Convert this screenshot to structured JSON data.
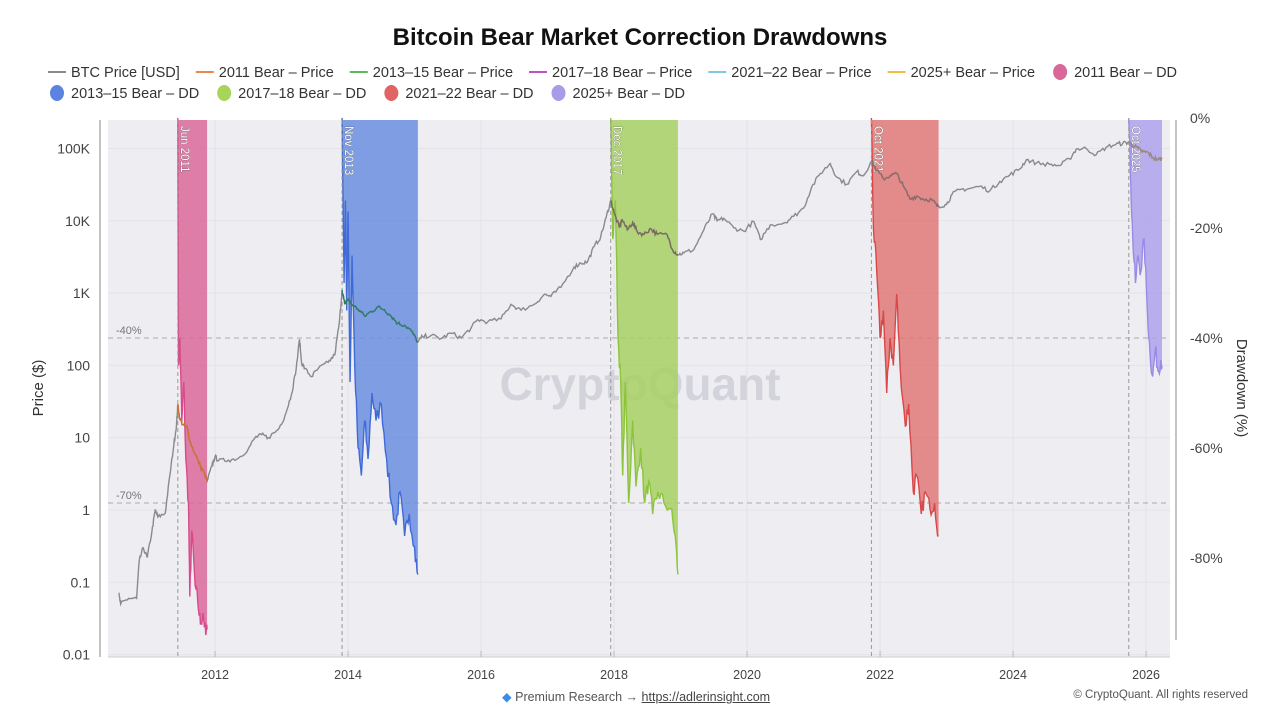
{
  "chart_data": {
    "type": "line",
    "title": "Bitcoin Bear Market Correction Drawdowns",
    "ylabel": "Price ($)",
    "y2label": "Drawdown (%)",
    "xlim": [
      2010.4,
      2026.35
    ],
    "ylim": [
      0.01,
      250000
    ],
    "yscale": "log",
    "y2lim": [
      -98,
      0
    ],
    "x_ticks": [
      "2012",
      "2014",
      "2016",
      "2018",
      "2020",
      "2022",
      "2024",
      "2026"
    ],
    "y_ticks": [
      {
        "value": 100000,
        "label": "100K"
      },
      {
        "value": 10000,
        "label": "10K"
      },
      {
        "value": 1000,
        "label": "1K"
      },
      {
        "value": 100,
        "label": "100"
      },
      {
        "value": 10,
        "label": "10"
      },
      {
        "value": 1,
        "label": "1"
      },
      {
        "value": 0.1,
        "label": "0.1"
      },
      {
        "value": 0.01,
        "label": "0.01"
      }
    ],
    "y2_ticks": [
      {
        "value": 0,
        "label": "0%"
      },
      {
        "value": -20,
        "label": "-20%"
      },
      {
        "value": -40,
        "label": "-40%"
      },
      {
        "value": -60,
        "label": "-60%"
      },
      {
        "value": -80,
        "label": "-80%"
      }
    ],
    "reference_lines": [
      {
        "value": -40,
        "label": "-40%"
      },
      {
        "value": -70,
        "label": "-70%"
      }
    ],
    "grid": true,
    "legend_position": "top",
    "legend": [
      {
        "name": "BTC Price [USD]",
        "kind": "line",
        "color": "#8a8a8e"
      },
      {
        "name": "2011 Bear – Price",
        "kind": "line",
        "color": "#e8874a"
      },
      {
        "name": "2013–15 Bear – Price",
        "kind": "line",
        "color": "#5cb85c"
      },
      {
        "name": "2017–18 Bear – Price",
        "kind": "line",
        "color": "#c050c8"
      },
      {
        "name": "2021–22 Bear – Price",
        "kind": "line",
        "color": "#7cc8e8"
      },
      {
        "name": "2025+ Bear – Price",
        "kind": "line",
        "color": "#f0c040"
      },
      {
        "name": "2011 Bear – DD",
        "kind": "dot",
        "color": "#d9679a"
      },
      {
        "name": "2013–15 Bear – DD",
        "kind": "dot",
        "color": "#5b84e0"
      },
      {
        "name": "2017–18 Bear – DD",
        "kind": "dot",
        "color": "#a8d45a"
      },
      {
        "name": "2021–22 Bear – DD",
        "kind": "dot",
        "color": "#e06464"
      },
      {
        "name": "2025+ Bear – DD",
        "kind": "dot",
        "color": "#a89ce8"
      }
    ],
    "bears": [
      {
        "label": "Jun 2011",
        "start": 2011.44,
        "end": 2011.88,
        "fill": "#d9689b",
        "line": "#d84a8a",
        "price_color": "#d0702e",
        "drawdown": [
          [
            2011.44,
            0
          ],
          [
            2011.45,
            -45
          ],
          [
            2011.47,
            -40
          ],
          [
            2011.5,
            -55
          ],
          [
            2011.53,
            -48
          ],
          [
            2011.56,
            -62
          ],
          [
            2011.6,
            -70
          ],
          [
            2011.62,
            -87
          ],
          [
            2011.65,
            -75
          ],
          [
            2011.7,
            -85
          ],
          [
            2011.74,
            -88
          ],
          [
            2011.78,
            -92
          ],
          [
            2011.82,
            -90
          ],
          [
            2011.86,
            -94
          ],
          [
            2011.88,
            -93
          ]
        ]
      },
      {
        "label": "Nov 2013",
        "start": 2013.91,
        "end": 2015.05,
        "fill": "#6a8ee0",
        "line": "#3f6ad8",
        "price_color": "#2f7a6a",
        "drawdown": [
          [
            2013.91,
            0
          ],
          [
            2013.94,
            -30
          ],
          [
            2013.96,
            -15
          ],
          [
            2013.98,
            -35
          ],
          [
            2014.0,
            -17
          ],
          [
            2014.03,
            -48
          ],
          [
            2014.06,
            -25
          ],
          [
            2014.1,
            -45
          ],
          [
            2014.15,
            -60
          ],
          [
            2014.2,
            -65
          ],
          [
            2014.25,
            -55
          ],
          [
            2014.3,
            -62
          ],
          [
            2014.36,
            -50
          ],
          [
            2014.42,
            -55
          ],
          [
            2014.5,
            -52
          ],
          [
            2014.58,
            -62
          ],
          [
            2014.65,
            -70
          ],
          [
            2014.72,
            -74
          ],
          [
            2014.78,
            -68
          ],
          [
            2014.85,
            -76
          ],
          [
            2014.92,
            -72
          ],
          [
            2015.0,
            -78
          ],
          [
            2015.05,
            -83
          ]
        ]
      },
      {
        "label": "Dec 2017",
        "start": 2017.95,
        "end": 2018.96,
        "fill": "#a8d064",
        "line": "#8cc43a",
        "price_color": "#7a6a60",
        "drawdown": [
          [
            2017.95,
            0
          ],
          [
            2017.98,
            -22
          ],
          [
            2018.02,
            -15
          ],
          [
            2018.06,
            -40
          ],
          [
            2018.1,
            -48
          ],
          [
            2018.13,
            -65
          ],
          [
            2018.17,
            -48
          ],
          [
            2018.22,
            -70
          ],
          [
            2018.28,
            -55
          ],
          [
            2018.33,
            -67
          ],
          [
            2018.4,
            -60
          ],
          [
            2018.46,
            -70
          ],
          [
            2018.52,
            -66
          ],
          [
            2018.58,
            -72
          ],
          [
            2018.66,
            -68
          ],
          [
            2018.75,
            -70
          ],
          [
            2018.85,
            -71
          ],
          [
            2018.92,
            -76
          ],
          [
            2018.96,
            -83
          ]
        ]
      },
      {
        "label": "Oct 2021",
        "start": 2021.87,
        "end": 2022.88,
        "fill": "#e07878",
        "line": "#d84848",
        "price_color": "#8a6a6a",
        "drawdown": [
          [
            2021.87,
            0
          ],
          [
            2021.9,
            -20
          ],
          [
            2021.95,
            -28
          ],
          [
            2022.0,
            -40
          ],
          [
            2022.05,
            -35
          ],
          [
            2022.1,
            -50
          ],
          [
            2022.15,
            -40
          ],
          [
            2022.2,
            -45
          ],
          [
            2022.25,
            -32
          ],
          [
            2022.3,
            -45
          ],
          [
            2022.38,
            -56
          ],
          [
            2022.43,
            -52
          ],
          [
            2022.5,
            -68
          ],
          [
            2022.55,
            -65
          ],
          [
            2022.62,
            -72
          ],
          [
            2022.68,
            -68
          ],
          [
            2022.75,
            -71
          ],
          [
            2022.82,
            -70
          ],
          [
            2022.88,
            -76
          ]
        ]
      },
      {
        "label": "Oct 2025",
        "start": 2025.74,
        "end": 2026.24,
        "fill": "#aea2ec",
        "line": "#9a8ae6",
        "price_color": "#9a8a80",
        "drawdown": [
          [
            2025.74,
            0
          ],
          [
            2025.77,
            -12
          ],
          [
            2025.8,
            -22
          ],
          [
            2025.84,
            -30
          ],
          [
            2025.88,
            -25
          ],
          [
            2025.92,
            -28
          ],
          [
            2025.97,
            -22
          ],
          [
            2026.02,
            -35
          ],
          [
            2026.06,
            -43
          ],
          [
            2026.1,
            -47
          ],
          [
            2026.14,
            -42
          ],
          [
            2026.18,
            -46
          ],
          [
            2026.22,
            -44
          ],
          [
            2026.24,
            -45
          ]
        ]
      }
    ],
    "btc_price": [
      [
        2010.55,
        0.07
      ],
      [
        2010.58,
        0.05
      ],
      [
        2010.7,
        0.06
      ],
      [
        2010.82,
        0.06
      ],
      [
        2010.86,
        0.2
      ],
      [
        2010.92,
        0.3
      ],
      [
        2010.98,
        0.22
      ],
      [
        2011.05,
        0.5
      ],
      [
        2011.1,
        1.0
      ],
      [
        2011.14,
        0.8
      ],
      [
        2011.25,
        0.9
      ],
      [
        2011.32,
        3
      ],
      [
        2011.38,
        8
      ],
      [
        2011.42,
        15
      ],
      [
        2011.44,
        29
      ],
      [
        2011.47,
        18
      ],
      [
        2011.52,
        15
      ],
      [
        2011.58,
        14
      ],
      [
        2011.62,
        9
      ],
      [
        2011.7,
        6
      ],
      [
        2011.78,
        4
      ],
      [
        2011.84,
        3.2
      ],
      [
        2011.88,
        2.5
      ],
      [
        2011.95,
        4
      ],
      [
        2012.0,
        5.5
      ],
      [
        2012.05,
        4.8
      ],
      [
        2012.2,
        4.9
      ],
      [
        2012.35,
        5.2
      ],
      [
        2012.5,
        7
      ],
      [
        2012.6,
        10
      ],
      [
        2012.7,
        11
      ],
      [
        2012.8,
        10
      ],
      [
        2012.95,
        13
      ],
      [
        2013.05,
        20
      ],
      [
        2013.15,
        40
      ],
      [
        2013.22,
        90
      ],
      [
        2013.27,
        230
      ],
      [
        2013.3,
        110
      ],
      [
        2013.35,
        90
      ],
      [
        2013.45,
        70
      ],
      [
        2013.55,
        90
      ],
      [
        2013.7,
        110
      ],
      [
        2013.8,
        140
      ],
      [
        2013.87,
        400
      ],
      [
        2013.91,
        1100
      ],
      [
        2013.95,
        700
      ],
      [
        2014.0,
        820
      ],
      [
        2014.05,
        700
      ],
      [
        2014.15,
        600
      ],
      [
        2014.25,
        480
      ],
      [
        2014.35,
        560
      ],
      [
        2014.45,
        640
      ],
      [
        2014.55,
        590
      ],
      [
        2014.65,
        480
      ],
      [
        2014.75,
        380
      ],
      [
        2014.85,
        360
      ],
      [
        2014.95,
        300
      ],
      [
        2015.05,
        210
      ],
      [
        2015.12,
        250
      ],
      [
        2015.25,
        260
      ],
      [
        2015.4,
        235
      ],
      [
        2015.55,
        280
      ],
      [
        2015.7,
        240
      ],
      [
        2015.85,
        330
      ],
      [
        2015.95,
        430
      ],
      [
        2016.1,
        400
      ],
      [
        2016.3,
        440
      ],
      [
        2016.45,
        700
      ],
      [
        2016.6,
        580
      ],
      [
        2016.8,
        700
      ],
      [
        2016.95,
        960
      ],
      [
        2017.05,
        900
      ],
      [
        2017.2,
        1200
      ],
      [
        2017.4,
        2300
      ],
      [
        2017.5,
        2600
      ],
      [
        2017.6,
        2700
      ],
      [
        2017.7,
        4400
      ],
      [
        2017.8,
        6000
      ],
      [
        2017.88,
        11000
      ],
      [
        2017.95,
        19000
      ],
      [
        2018.0,
        13000
      ],
      [
        2018.08,
        8000
      ],
      [
        2018.12,
        10500
      ],
      [
        2018.2,
        7500
      ],
      [
        2018.28,
        9500
      ],
      [
        2018.35,
        7000
      ],
      [
        2018.45,
        6500
      ],
      [
        2018.55,
        7800
      ],
      [
        2018.65,
        6500
      ],
      [
        2018.8,
        6400
      ],
      [
        2018.88,
        4000
      ],
      [
        2018.96,
        3400
      ],
      [
        2019.05,
        3600
      ],
      [
        2019.2,
        4000
      ],
      [
        2019.35,
        7500
      ],
      [
        2019.48,
        12500
      ],
      [
        2019.55,
        10000
      ],
      [
        2019.65,
        10800
      ],
      [
        2019.8,
        8000
      ],
      [
        2019.95,
        7200
      ],
      [
        2020.1,
        9800
      ],
      [
        2020.2,
        5500
      ],
      [
        2020.35,
        8800
      ],
      [
        2020.55,
        9300
      ],
      [
        2020.7,
        11500
      ],
      [
        2020.85,
        15000
      ],
      [
        2020.97,
        29000
      ],
      [
        2021.1,
        45000
      ],
      [
        2021.25,
        62000
      ],
      [
        2021.35,
        40000
      ],
      [
        2021.5,
        32000
      ],
      [
        2021.65,
        48000
      ],
      [
        2021.75,
        42000
      ],
      [
        2021.87,
        67000
      ],
      [
        2021.95,
        50000
      ],
      [
        2022.05,
        38000
      ],
      [
        2022.15,
        42000
      ],
      [
        2022.25,
        45000
      ],
      [
        2022.35,
        30000
      ],
      [
        2022.45,
        20000
      ],
      [
        2022.55,
        22000
      ],
      [
        2022.65,
        20000
      ],
      [
        2022.78,
        19500
      ],
      [
        2022.85,
        16500
      ],
      [
        2022.88,
        16000
      ],
      [
        2023.0,
        16800
      ],
      [
        2023.08,
        23000
      ],
      [
        2023.2,
        27000
      ],
      [
        2023.35,
        28000
      ],
      [
        2023.5,
        30000
      ],
      [
        2023.65,
        26000
      ],
      [
        2023.8,
        35000
      ],
      [
        2023.95,
        43000
      ],
      [
        2024.1,
        52000
      ],
      [
        2024.2,
        70000
      ],
      [
        2024.35,
        63000
      ],
      [
        2024.55,
        60000
      ],
      [
        2024.7,
        58000
      ],
      [
        2024.85,
        72000
      ],
      [
        2024.95,
        98000
      ],
      [
        2025.1,
        100000
      ],
      [
        2025.25,
        82000
      ],
      [
        2025.4,
        104000
      ],
      [
        2025.55,
        115000
      ],
      [
        2025.65,
        118000
      ],
      [
        2025.74,
        122000
      ],
      [
        2025.8,
        110000
      ],
      [
        2025.88,
        100000
      ],
      [
        2025.95,
        90000
      ],
      [
        2026.03,
        88000
      ],
      [
        2026.1,
        75000
      ],
      [
        2026.18,
        70000
      ],
      [
        2026.24,
        72000
      ]
    ]
  },
  "watermark": "CryptoQuant",
  "footer": {
    "premium_label": "Premium Research →",
    "link": "https://adlerinsight.com",
    "copyright": "© CryptoQuant. All rights reserved"
  },
  "colors": {
    "plot_bg": "#eeeef2",
    "price": "#8a8a8e",
    "gem": "#3a8ee8"
  }
}
